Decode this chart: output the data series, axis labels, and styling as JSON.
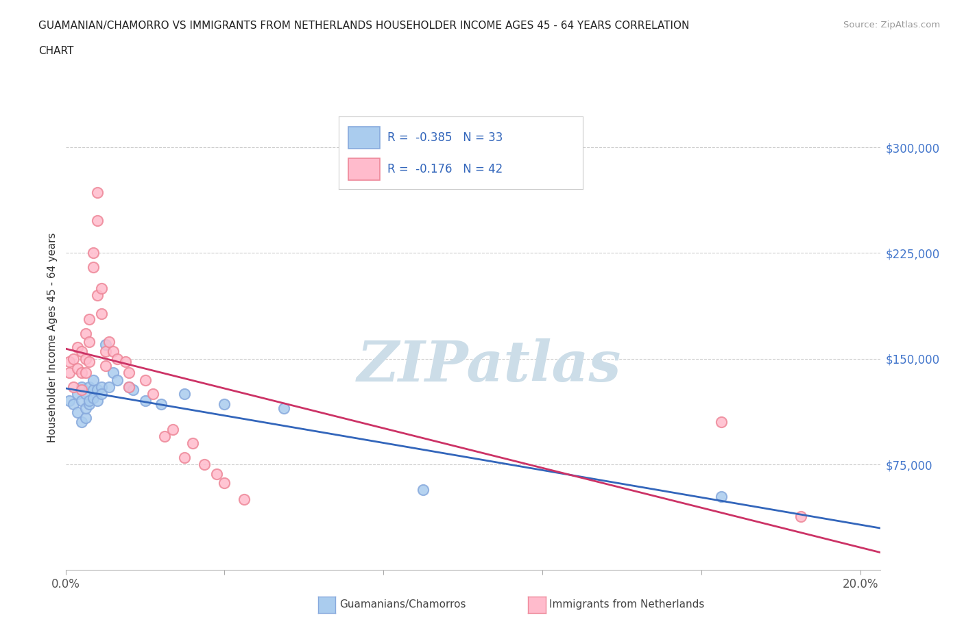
{
  "title_line1": "GUAMANIAN/CHAMORRO VS IMMIGRANTS FROM NETHERLANDS HOUSEHOLDER INCOME AGES 45 - 64 YEARS CORRELATION",
  "title_line2": "CHART",
  "source_text": "Source: ZipAtlas.com",
  "ylabel": "Householder Income Ages 45 - 64 years",
  "xlim": [
    0.0,
    0.205
  ],
  "ylim": [
    0,
    330000
  ],
  "xticks": [
    0.0,
    0.04,
    0.08,
    0.12,
    0.16,
    0.2
  ],
  "xticklabels": [
    "0.0%",
    "",
    "",
    "",
    "",
    "20.0%"
  ],
  "ytick_positions": [
    0,
    75000,
    150000,
    225000,
    300000
  ],
  "ytick_labels": [
    "",
    "$75,000",
    "$150,000",
    "$225,000",
    "$300,000"
  ],
  "grid_color": "#cccccc",
  "background_color": "#ffffff",
  "blue_color": "#aaccee",
  "blue_edge_color": "#88aadd",
  "pink_color": "#ffbbcc",
  "pink_edge_color": "#ee8899",
  "blue_line_color": "#3366bb",
  "pink_line_color": "#cc3366",
  "blue_label": "Guamanians/Chamorros",
  "pink_label": "Immigrants from Netherlands",
  "legend_R_blue": "R =  -0.385",
  "legend_N_blue": "N = 33",
  "legend_R_pink": "R =  -0.176",
  "legend_N_pink": "N = 42",
  "legend_text_color": "#3366bb",
  "blue_scatter_x": [
    0.001,
    0.002,
    0.003,
    0.003,
    0.004,
    0.004,
    0.004,
    0.005,
    0.005,
    0.005,
    0.006,
    0.006,
    0.006,
    0.007,
    0.007,
    0.007,
    0.008,
    0.008,
    0.009,
    0.009,
    0.01,
    0.011,
    0.012,
    0.013,
    0.016,
    0.017,
    0.02,
    0.024,
    0.03,
    0.04,
    0.055,
    0.09,
    0.165
  ],
  "blue_scatter_y": [
    120000,
    118000,
    112000,
    125000,
    105000,
    120000,
    130000,
    108000,
    115000,
    125000,
    118000,
    130000,
    120000,
    128000,
    122000,
    135000,
    128000,
    120000,
    130000,
    125000,
    160000,
    130000,
    140000,
    135000,
    130000,
    128000,
    120000,
    118000,
    125000,
    118000,
    115000,
    57000,
    52000
  ],
  "pink_scatter_x": [
    0.001,
    0.001,
    0.002,
    0.002,
    0.003,
    0.003,
    0.004,
    0.004,
    0.004,
    0.005,
    0.005,
    0.005,
    0.006,
    0.006,
    0.006,
    0.007,
    0.007,
    0.008,
    0.008,
    0.008,
    0.009,
    0.009,
    0.01,
    0.01,
    0.011,
    0.012,
    0.013,
    0.015,
    0.016,
    0.016,
    0.02,
    0.022,
    0.025,
    0.027,
    0.03,
    0.032,
    0.035,
    0.038,
    0.04,
    0.045,
    0.165,
    0.185
  ],
  "pink_scatter_y": [
    140000,
    148000,
    150000,
    130000,
    158000,
    143000,
    155000,
    140000,
    128000,
    168000,
    150000,
    140000,
    178000,
    162000,
    148000,
    225000,
    215000,
    268000,
    248000,
    195000,
    200000,
    182000,
    155000,
    145000,
    162000,
    155000,
    150000,
    148000,
    140000,
    130000,
    135000,
    125000,
    95000,
    100000,
    80000,
    90000,
    75000,
    68000,
    62000,
    50000,
    105000,
    38000
  ],
  "watermark_color": "#ccdde8",
  "watermark_fontsize": 60
}
